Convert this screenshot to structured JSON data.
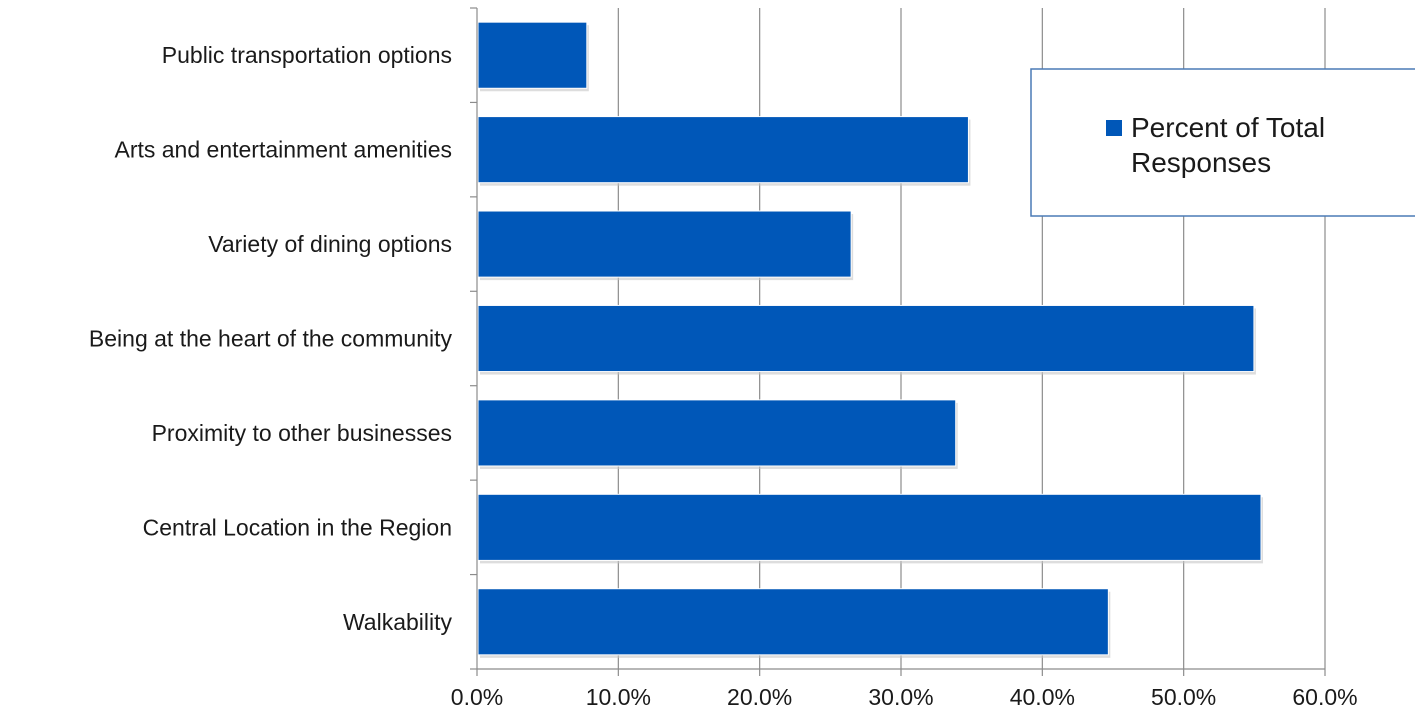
{
  "chart_data": {
    "type": "bar",
    "orientation": "horizontal",
    "categories": [
      "Public transportation options",
      "Arts and entertainment amenities",
      "Variety of dining options",
      "Being at the heart of the community",
      "Proximity to other businesses",
      "Central Location in the Region",
      "Walkability"
    ],
    "series": [
      {
        "name": "Percent of Total Responses",
        "values": [
          7.7,
          34.7,
          26.4,
          54.9,
          33.8,
          55.4,
          44.6
        ],
        "color": "#0057B8"
      }
    ],
    "x_ticks": [
      "0.0%",
      "10.0%",
      "20.0%",
      "30.0%",
      "40.0%",
      "50.0%",
      "60.0%"
    ],
    "xlim": [
      0,
      60
    ],
    "grid": "vertical",
    "legend": {
      "position": "top-right",
      "lines": [
        "Percent of Total",
        "Responses"
      ]
    },
    "title": "",
    "xlabel": "",
    "ylabel": ""
  }
}
